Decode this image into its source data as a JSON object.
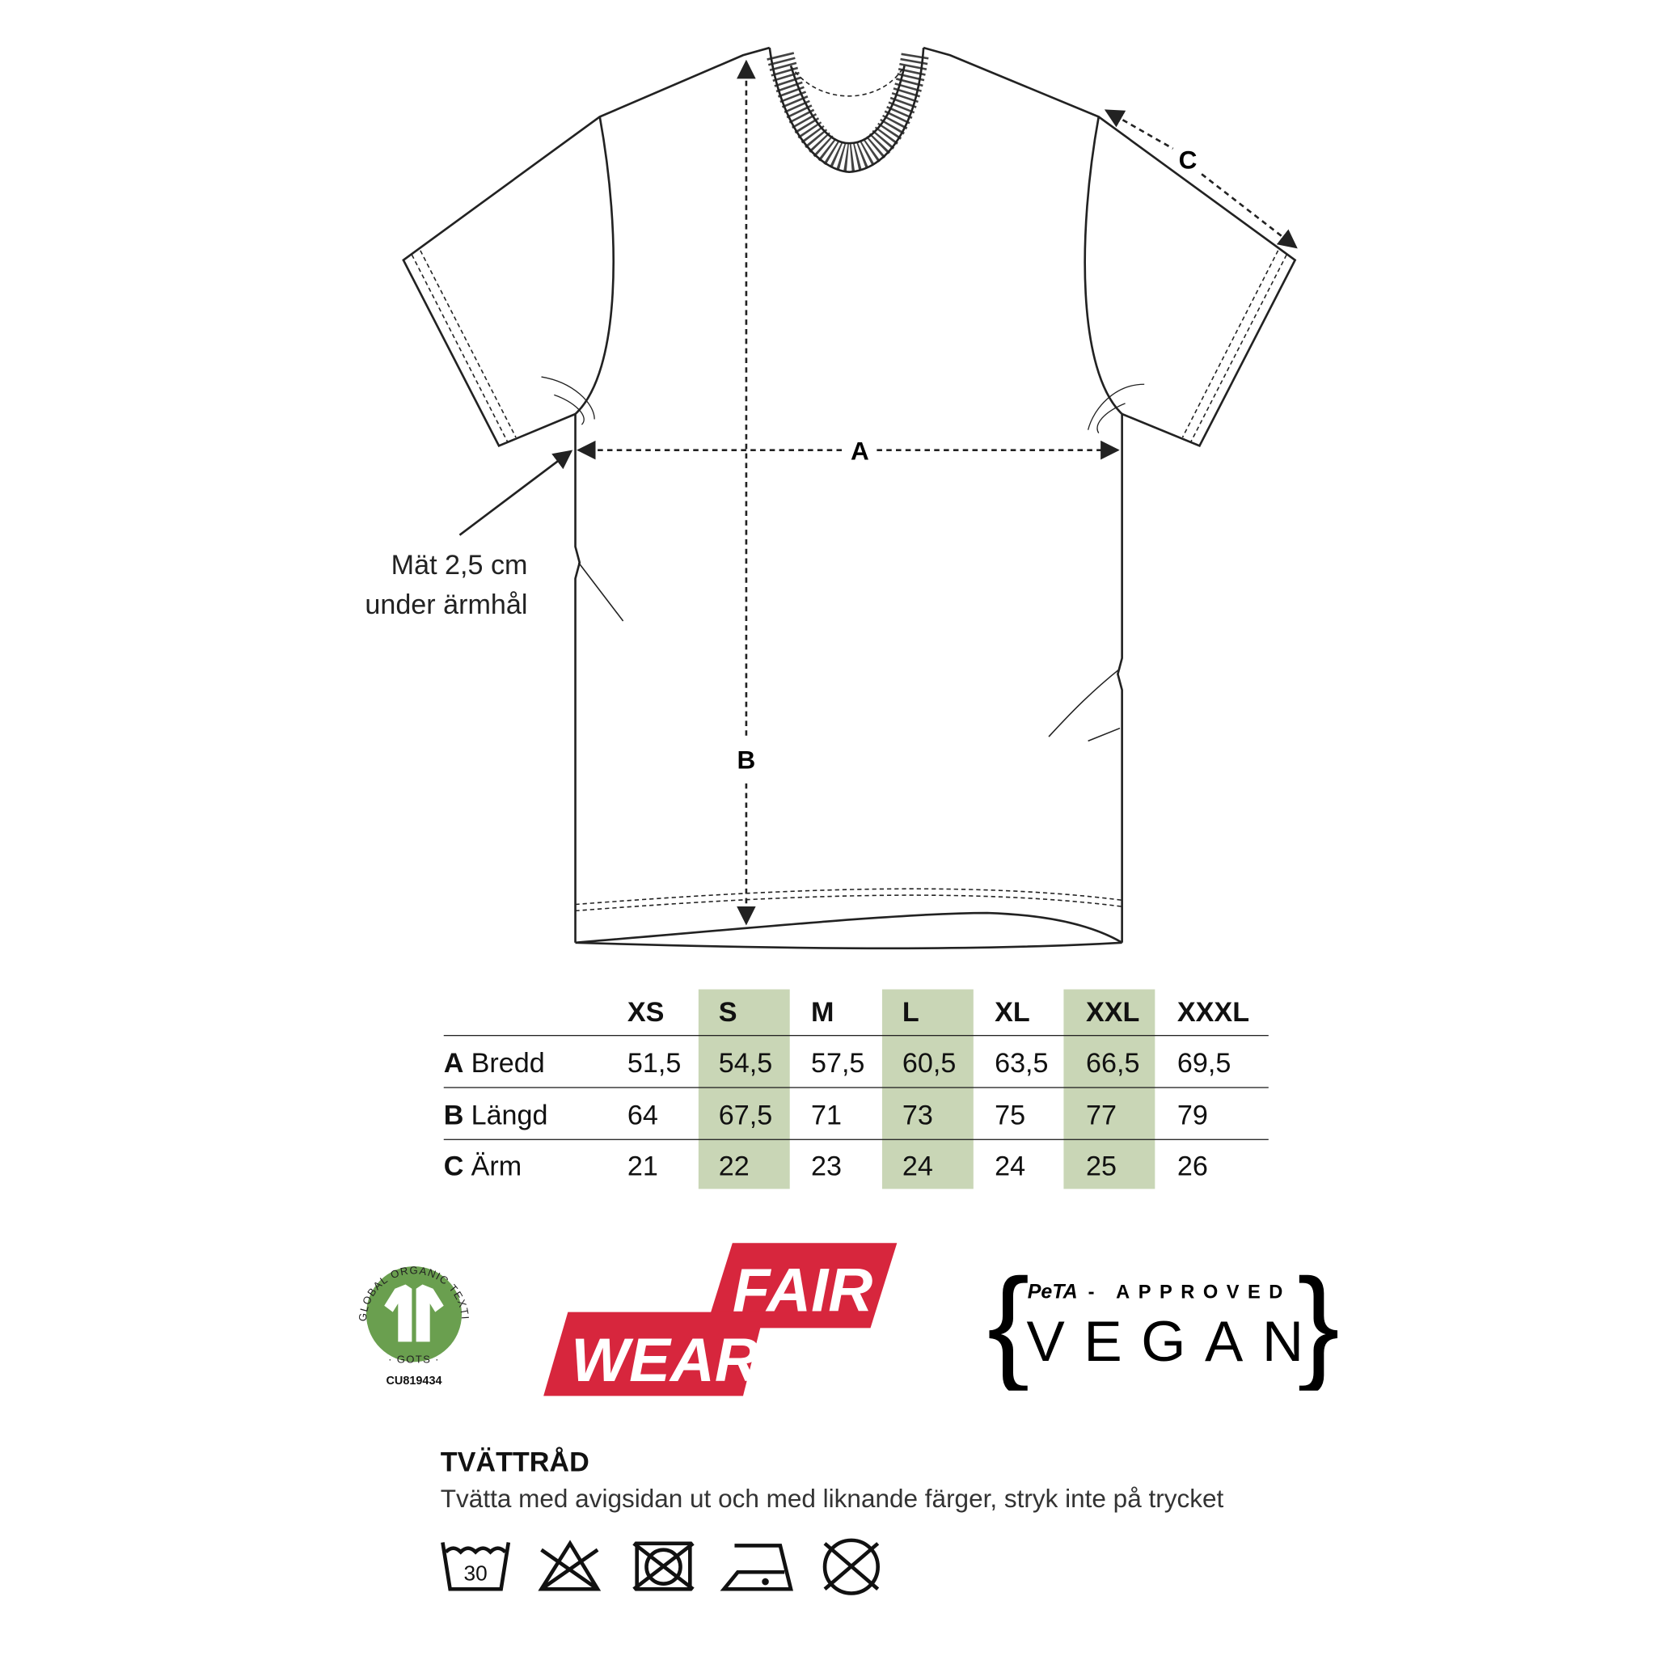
{
  "diagram": {
    "label_a": "A",
    "label_b": "B",
    "label_c": "C",
    "note_line1": "Mät 2,5 cm",
    "note_line2": "under ärmhål"
  },
  "size_table": {
    "highlight_color": "#c9d6b6",
    "sizes": [
      "XS",
      "S",
      "M",
      "L",
      "XL",
      "XXL",
      "XXXL"
    ],
    "highlighted": [
      "S",
      "L",
      "XXL"
    ],
    "rows": [
      {
        "key": "A",
        "label": "Bredd",
        "values": [
          "51,5",
          "54,5",
          "57,5",
          "60,5",
          "63,5",
          "66,5",
          "69,5"
        ]
      },
      {
        "key": "B",
        "label": "Längd",
        "values": [
          "64",
          "67,5",
          "71",
          "73",
          "75",
          "77",
          "79"
        ]
      },
      {
        "key": "C",
        "label": "Ärm",
        "values": [
          "21",
          "22",
          "23",
          "24",
          "24",
          "25",
          "26"
        ]
      }
    ]
  },
  "logos": {
    "gots": {
      "ring_text": "GLOBAL ORGANIC TEXTILE STANDARD",
      "bottom_text": "· GOTS ·",
      "code": "CU819434",
      "color": "#6a9f4f"
    },
    "fairwear": {
      "line1": "FAIR",
      "line2": "WEAR",
      "color": "#d7263d"
    },
    "peta": {
      "brand": "PeTA",
      "approved": "- APPROVED",
      "vegan": "VEGAN"
    }
  },
  "care": {
    "title": "TVÄTTRÅD",
    "text": "Tvätta med avigsidan ut och med liknande färger, stryk inte på trycket",
    "icons": [
      {
        "name": "wash-30-icon",
        "label": "30"
      },
      {
        "name": "no-bleach-icon"
      },
      {
        "name": "no-tumble-dry-icon"
      },
      {
        "name": "iron-low-icon"
      },
      {
        "name": "no-dry-clean-icon"
      }
    ]
  }
}
